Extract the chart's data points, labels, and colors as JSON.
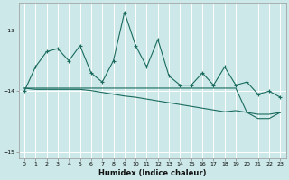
{
  "title": "",
  "xlabel": "Humidex (Indice chaleur)",
  "bg_color": "#cce8e8",
  "grid_color": "#ffffff",
  "line_color": "#1a6b5e",
  "xlim": [
    -0.5,
    23.5
  ],
  "ylim": [
    -15.1,
    -12.55
  ],
  "yticks": [
    -15,
    -14,
    -13
  ],
  "xticks": [
    0,
    1,
    2,
    3,
    4,
    5,
    6,
    7,
    8,
    9,
    10,
    11,
    12,
    13,
    14,
    15,
    16,
    17,
    18,
    19,
    20,
    21,
    22,
    23
  ],
  "series1_x": [
    0,
    1,
    2,
    3,
    4,
    5,
    6,
    7,
    8,
    9,
    10,
    11,
    12,
    13,
    14,
    15,
    16,
    17,
    18,
    19,
    20,
    21,
    22,
    23
  ],
  "series1_y": [
    -14.0,
    -13.6,
    -13.35,
    -13.3,
    -13.5,
    -13.25,
    -13.7,
    -13.85,
    -13.5,
    -12.7,
    -13.25,
    -13.6,
    -13.15,
    -13.75,
    -13.9,
    -13.9,
    -13.7,
    -13.9,
    -13.6,
    -13.9,
    -13.85,
    -14.05,
    -14.0,
    -14.1
  ],
  "series2_x": [
    0,
    1,
    2,
    3,
    4,
    5,
    6,
    7,
    8,
    9,
    10,
    11,
    12,
    13,
    14,
    15,
    16,
    17,
    18,
    19,
    20,
    21,
    22,
    23
  ],
  "series2_y": [
    -13.95,
    -13.97,
    -13.97,
    -13.97,
    -13.97,
    -13.97,
    -13.99,
    -14.02,
    -14.05,
    -14.08,
    -14.1,
    -14.13,
    -14.16,
    -14.19,
    -14.22,
    -14.25,
    -14.28,
    -14.31,
    -14.34,
    -14.32,
    -14.35,
    -14.38,
    -14.38,
    -14.35
  ],
  "series3_x": [
    0,
    1,
    2,
    3,
    4,
    5,
    6,
    7,
    8,
    9,
    10,
    11,
    12,
    13,
    14,
    15,
    16,
    17,
    18,
    19,
    20,
    21,
    22,
    23
  ],
  "series3_y": [
    -13.95,
    -13.95,
    -13.95,
    -13.95,
    -13.95,
    -13.95,
    -13.95,
    -13.95,
    -13.95,
    -13.95,
    -13.95,
    -13.95,
    -13.95,
    -13.95,
    -13.95,
    -13.95,
    -13.95,
    -13.95,
    -13.95,
    -13.95,
    -14.35,
    -14.45,
    -14.45,
    -14.35
  ]
}
